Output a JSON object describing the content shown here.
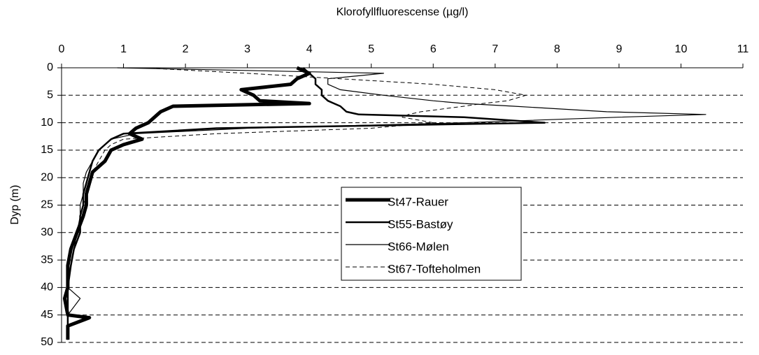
{
  "chart_data": {
    "type": "line",
    "title": "Klorofyllfluorescense (µg/l)",
    "y_label": "Dyp (m)",
    "xlim": [
      0,
      11
    ],
    "xticks": [
      0,
      1,
      2,
      3,
      4,
      5,
      6,
      7,
      8,
      9,
      10,
      11
    ],
    "ylim": [
      0,
      50
    ],
    "yticks": [
      0,
      5,
      10,
      15,
      20,
      25,
      30,
      35,
      40,
      45,
      50
    ],
    "y_inverted": true,
    "x_axis_position": "top",
    "grid": true,
    "legend": "center",
    "y": [
      0,
      1,
      2,
      3,
      4,
      5,
      6,
      6.5,
      7,
      8,
      8.5,
      9,
      10,
      11,
      12,
      13,
      14,
      15,
      17,
      19,
      21,
      23,
      25,
      27,
      30,
      33,
      36,
      40,
      42,
      45,
      45.5,
      47,
      49.5
    ],
    "series": [
      {
        "name": "St47-Rauer",
        "color": "#000000",
        "line_width": 5,
        "dashed": false,
        "values": [
          3.8,
          4.0,
          3.8,
          3.7,
          2.9,
          3.1,
          3.2,
          4.0,
          1.8,
          1.6,
          1.55,
          1.5,
          1.4,
          1.2,
          1.1,
          1.3,
          1.0,
          0.8,
          0.7,
          0.5,
          0.45,
          0.4,
          0.4,
          0.35,
          0.25,
          0.15,
          0.1,
          0.1,
          0.05,
          0.1,
          0.45,
          0.1,
          0.1
        ]
      },
      {
        "name": "St55-Bastøy",
        "color": "#000000",
        "line_width": 2.5,
        "dashed": false,
        "values": [
          3.9,
          4.0,
          4.1,
          4.1,
          4.2,
          4.2,
          4.3,
          4.4,
          4.5,
          4.6,
          4.8,
          6.5,
          7.8,
          2.5,
          1.0,
          0.8,
          0.7,
          0.6,
          0.5,
          0.45,
          0.4,
          0.35,
          0.35,
          0.3,
          0.3,
          0.2,
          0.15,
          0.1,
          0.1,
          0.1,
          0.1,
          0.1,
          0.1
        ]
      },
      {
        "name": "St66-Mølen",
        "color": "#000000",
        "line_width": 1.2,
        "dashed": false,
        "values": [
          0.9,
          5.2,
          4.3,
          4.3,
          4.5,
          5.2,
          6.0,
          6.5,
          7.3,
          8.8,
          10.4,
          9.0,
          6.5,
          3.0,
          1.2,
          0.8,
          0.7,
          0.6,
          0.5,
          0.4,
          0.35,
          0.35,
          0.3,
          0.3,
          0.25,
          0.2,
          0.15,
          0.1,
          0.3,
          0.1,
          0.1,
          0.1,
          0.1
        ]
      },
      {
        "name": "St67-Tofteholmen",
        "color": "#000000",
        "line_width": 1,
        "dashed": true,
        "values": [
          1.3,
          3.0,
          4.5,
          6.0,
          7.0,
          7.5,
          7.2,
          6.8,
          6.5,
          5.8,
          5.6,
          5.5,
          6.0,
          5.0,
          2.5,
          1.0,
          0.8,
          0.7,
          0.6,
          0.5,
          0.45,
          0.4,
          0.35,
          0.3,
          0.3,
          0.2,
          0.15,
          0.1,
          0.1,
          0.1,
          0.1,
          0.1,
          0.1
        ]
      }
    ]
  }
}
